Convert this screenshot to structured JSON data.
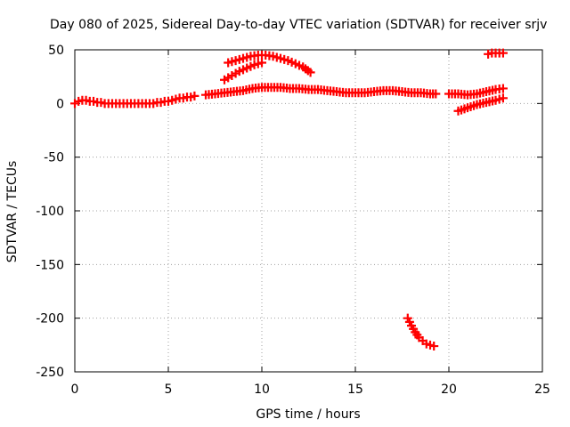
{
  "chart_data": {
    "type": "scatter",
    "title": "Day 080 of 2025, Sidereal Day-to-day VTEC variation (SDTVAR) for receiver srjv",
    "xlabel": "GPS time / hours",
    "ylabel": "SDTVAR / TECUs",
    "xlim": [
      0,
      25
    ],
    "ylim": [
      -250,
      50
    ],
    "xticks": [
      "0",
      "5",
      "10",
      "15",
      "20",
      "25"
    ],
    "yticks": [
      "50",
      "0",
      "-50",
      "-100",
      "-150",
      "-200",
      "-250"
    ],
    "grid": true,
    "marker": "plus",
    "series_color": "#ff0000",
    "series": [
      {
        "x": [
          0.0,
          0.2,
          0.4,
          0.6,
          0.8,
          1.0,
          1.2,
          1.4,
          1.6,
          1.8,
          2.0,
          2.2,
          2.4,
          2.6,
          2.8,
          3.0,
          3.2,
          3.4,
          3.6,
          3.8,
          4.0,
          4.2,
          4.4,
          4.6,
          4.8,
          5.0,
          5.2,
          5.4,
          5.6,
          5.8,
          6.0,
          6.2,
          6.4
        ],
        "y": [
          0,
          2,
          3,
          3,
          2,
          2,
          1,
          1,
          0,
          0,
          0,
          0,
          0,
          0,
          0,
          0,
          0,
          0,
          0,
          0,
          0,
          0,
          1,
          1,
          2,
          2,
          3,
          4,
          5,
          5,
          6,
          6,
          7
        ]
      },
      {
        "x": [
          7.0,
          7.5,
          8.0,
          8.5,
          9.0,
          9.5,
          10.0,
          10.5,
          11.0,
          11.5,
          12.0,
          12.5,
          13.0,
          13.5,
          14.0,
          14.5,
          15.0,
          15.5,
          16.0,
          16.5,
          17.0,
          17.5,
          18.0,
          18.5,
          19.0,
          19.3
        ],
        "y": [
          8,
          9,
          10,
          11,
          12,
          14,
          15,
          15,
          15,
          14,
          14,
          13,
          13,
          12,
          11,
          10,
          10,
          10,
          11,
          12,
          12,
          11,
          10,
          10,
          9,
          9
        ]
      },
      {
        "x": [
          20.0,
          20.5,
          21.0,
          21.5,
          22.0,
          22.5,
          22.9
        ],
        "y": [
          9,
          9,
          8,
          9,
          11,
          13,
          14
        ]
      },
      {
        "x": [
          8.2,
          8.6,
          9.0,
          9.4,
          9.8,
          10.2,
          10.6,
          11.0,
          11.4,
          11.8,
          12.2,
          12.6
        ],
        "y": [
          38,
          40,
          42,
          44,
          45,
          45,
          44,
          42,
          40,
          37,
          34,
          29
        ]
      },
      {
        "x": [
          8.0,
          8.4,
          8.8,
          9.2,
          9.6,
          10.0
        ],
        "y": [
          22,
          26,
          30,
          33,
          36,
          38
        ]
      },
      {
        "x": [
          20.5,
          21.0,
          21.5,
          22.0,
          22.5,
          22.9
        ],
        "y": [
          -7,
          -4,
          -1,
          1,
          3,
          5
        ]
      },
      {
        "x": [
          22.1,
          22.3,
          22.5,
          22.7,
          22.9
        ],
        "y": [
          46,
          47,
          47,
          47,
          47
        ]
      },
      {
        "x": [
          17.8,
          18.0,
          18.2,
          18.4,
          18.6,
          18.8,
          19.0,
          19.2
        ],
        "y": [
          -200,
          -207,
          -213,
          -218,
          -221,
          -224,
          -225,
          -226
        ]
      }
    ]
  }
}
